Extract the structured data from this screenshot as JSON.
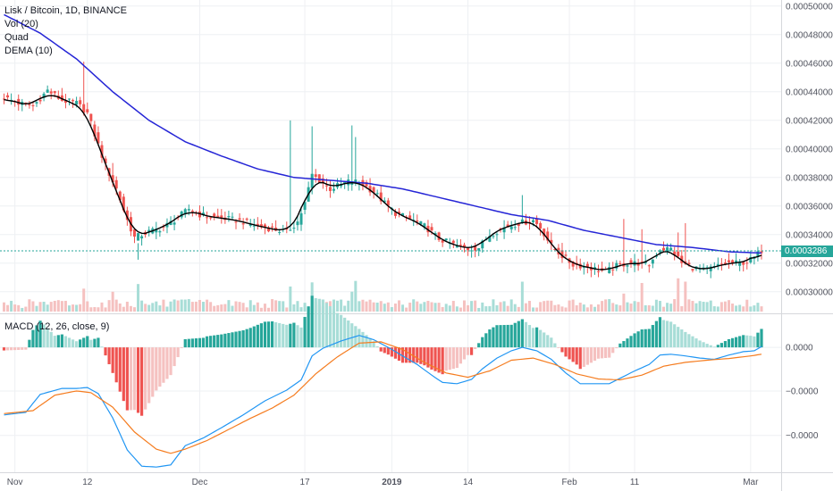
{
  "header": {
    "title": "Lisk / Bitcoin, 1D, BINANCE",
    "indicators": [
      "Vol (20)",
      "Quad",
      "DEMA (10)"
    ]
  },
  "macd_header": {
    "label": "MACD (12, 26, close, 9)"
  },
  "colors": {
    "up": "#26a69a",
    "down": "#ef5350",
    "up_vol": "#a8ddd7",
    "down_vol": "#f5c1c0",
    "quad": "#2525d6",
    "dema": "#000000",
    "macd": "#2196f3",
    "signal": "#f57c1f",
    "price_tag": "#26a69a",
    "grid": "#eef0f3"
  },
  "chart_data": [
    {
      "type": "candlestick",
      "title": "Lisk / Bitcoin, 1D, BINANCE",
      "y_tick_labels": [
        "0.00050000",
        "0.00048000",
        "0.00046000",
        "0.00044000",
        "0.00042000",
        "0.00040000",
        "0.00038000",
        "0.00036000",
        "0.00034000",
        "0.00032000",
        "0.00030000"
      ],
      "ylim": [
        0.000293,
        0.0005005
      ],
      "x_tick_labels": [
        "Nov",
        "12",
        "Dec",
        "17",
        "2019",
        "14",
        "Feb",
        "11",
        "Mar"
      ],
      "x_tick_index": [
        3,
        23,
        54,
        83,
        107,
        128,
        156,
        174,
        206
      ],
      "last_price_label": "0.0003286",
      "last_price": 0.0003286,
      "series_names": [
        "Vol (20)",
        "Quad",
        "DEMA (10)"
      ],
      "dema_smoothing": 3,
      "quad_anchors": [
        [
          0,
          0.000494
        ],
        [
          10,
          0.000481
        ],
        [
          20,
          0.000463
        ],
        [
          30,
          0.00044
        ],
        [
          40,
          0.00042
        ],
        [
          50,
          0.000405
        ],
        [
          60,
          0.000395
        ],
        [
          70,
          0.000386
        ],
        [
          80,
          0.00038
        ],
        [
          90,
          0.000378
        ],
        [
          100,
          0.000376
        ],
        [
          110,
          0.000372
        ],
        [
          120,
          0.000366
        ],
        [
          130,
          0.00036
        ],
        [
          140,
          0.000354
        ],
        [
          150,
          0.00035
        ],
        [
          160,
          0.000343
        ],
        [
          170,
          0.000338
        ],
        [
          180,
          0.000333
        ],
        [
          190,
          0.000331
        ],
        [
          200,
          0.000328
        ],
        [
          210,
          0.000327
        ]
      ],
      "close_anchors": [
        [
          0,
          0.000436
        ],
        [
          4,
          0.000432
        ],
        [
          8,
          0.00043
        ],
        [
          12,
          0.000441
        ],
        [
          16,
          0.000434
        ],
        [
          20,
          0.000432
        ],
        [
          23,
          0.000425
        ],
        [
          25,
          0.00041
        ],
        [
          28,
          0.000388
        ],
        [
          31,
          0.000372
        ],
        [
          34,
          0.00035
        ],
        [
          36,
          0.000338
        ],
        [
          40,
          0.000342
        ],
        [
          44,
          0.000345
        ],
        [
          48,
          0.000352
        ],
        [
          51,
          0.000358
        ],
        [
          54,
          0.000354
        ],
        [
          58,
          0.000352
        ],
        [
          62,
          0.000351
        ],
        [
          66,
          0.000349
        ],
        [
          70,
          0.000346
        ],
        [
          74,
          0.000344
        ],
        [
          78,
          0.000342
        ],
        [
          81,
          0.000349
        ],
        [
          83,
          0.000362
        ],
        [
          85,
          0.000382
        ],
        [
          87,
          0.000378
        ],
        [
          90,
          0.000372
        ],
        [
          93,
          0.000375
        ],
        [
          96,
          0.000378
        ],
        [
          99,
          0.000375
        ],
        [
          102,
          0.00037
        ],
        [
          105,
          0.000362
        ],
        [
          108,
          0.000355
        ],
        [
          112,
          0.000351
        ],
        [
          116,
          0.000346
        ],
        [
          120,
          0.000337
        ],
        [
          124,
          0.000333
        ],
        [
          128,
          0.00033
        ],
        [
          131,
          0.000331
        ],
        [
          134,
          0.00034
        ],
        [
          138,
          0.000345
        ],
        [
          142,
          0.000348
        ],
        [
          146,
          0.00035
        ],
        [
          148,
          0.000345
        ],
        [
          151,
          0.000332
        ],
        [
          154,
          0.000325
        ],
        [
          157,
          0.000319
        ],
        [
          160,
          0.000318
        ],
        [
          163,
          0.000316
        ],
        [
          166,
          0.000314
        ],
        [
          169,
          0.000318
        ],
        [
          172,
          0.00032
        ],
        [
          175,
          0.00032
        ],
        [
          178,
          0.000319
        ],
        [
          181,
          0.00033
        ],
        [
          184,
          0.00033
        ],
        [
          187,
          0.00032
        ],
        [
          190,
          0.000317
        ],
        [
          193,
          0.000315
        ],
        [
          196,
          0.000317
        ],
        [
          199,
          0.00032
        ],
        [
          202,
          0.00032
        ],
        [
          205,
          0.000321
        ],
        [
          207,
          0.000324
        ],
        [
          209,
          0.000329
        ]
      ],
      "spike_candles": [
        [
          22,
          0.000457
        ],
        [
          30,
          0.00039
        ],
        [
          37,
          0.00032
        ],
        [
          79,
          0.000415
        ],
        [
          85,
          0.000415
        ],
        [
          96,
          0.000413
        ],
        [
          97,
          0.000407
        ],
        [
          143,
          0.000366
        ],
        [
          171,
          0.000346
        ],
        [
          176,
          0.00034
        ],
        [
          186,
          0.000339
        ],
        [
          188,
          0.000343
        ]
      ]
    },
    {
      "type": "macd",
      "title": "MACD (12, 26, close, 9)",
      "y_tick_labels": [
        "0.0000",
        "−0.0000",
        "−0.0000"
      ],
      "y_tick_values": [
        0,
        -1.02e-05,
        -2.06e-05
      ],
      "ylim": [
        -2.88e-05,
        6.5e-06
      ],
      "macd_anchors": [
        [
          0,
          -1.58e-05
        ],
        [
          6,
          -1.52e-05
        ],
        [
          10,
          -1.1e-05
        ],
        [
          16,
          -9.6e-06
        ],
        [
          20,
          -9.6e-06
        ],
        [
          23,
          -9.4e-06
        ],
        [
          26,
          -1.08e-05
        ],
        [
          30,
          -1.65e-05
        ],
        [
          34,
          -2.4e-05
        ],
        [
          38,
          -2.78e-05
        ],
        [
          42,
          -2.8e-05
        ],
        [
          46,
          -2.75e-05
        ],
        [
          50,
          -2.3e-05
        ],
        [
          55,
          -2.12e-05
        ],
        [
          60,
          -1.88e-05
        ],
        [
          66,
          -1.58e-05
        ],
        [
          72,
          -1.25e-05
        ],
        [
          78,
          -1e-05
        ],
        [
          82,
          -7.6e-06
        ],
        [
          85,
          -2e-06
        ],
        [
          88,
          -2e-07
        ],
        [
          93,
          1.5e-06
        ],
        [
          98,
          2.8e-06
        ],
        [
          102,
          1.8e-06
        ],
        [
          106,
          0.0
        ],
        [
          110,
          -2e-06
        ],
        [
          114,
          -4e-06
        ],
        [
          118,
          -6.5e-06
        ],
        [
          121,
          -8.2e-06
        ],
        [
          125,
          -8.5e-06
        ],
        [
          129,
          -7.5e-06
        ],
        [
          132,
          -5e-06
        ],
        [
          136,
          -2.5e-06
        ],
        [
          140,
          -8e-07
        ],
        [
          143,
          0.0
        ],
        [
          147,
          -8e-07
        ],
        [
          151,
          -2.8e-06
        ],
        [
          155,
          -6e-06
        ],
        [
          159,
          -8.5e-06
        ],
        [
          163,
          -8.5e-06
        ],
        [
          167,
          -8.5e-06
        ],
        [
          171,
          -6.8e-06
        ],
        [
          174,
          -5.5e-06
        ],
        [
          178,
          -4e-06
        ],
        [
          181,
          -1.8e-06
        ],
        [
          184,
          -1.6e-06
        ],
        [
          188,
          -2e-06
        ],
        [
          192,
          -2.5e-06
        ],
        [
          196,
          -2.8e-06
        ],
        [
          200,
          -1.8e-06
        ],
        [
          204,
          -1e-06
        ],
        [
          207,
          -8e-07
        ],
        [
          209,
          2e-07
        ]
      ],
      "signal_anchors": [
        [
          0,
          -1.55e-05
        ],
        [
          8,
          -1.48e-05
        ],
        [
          14,
          -1.12e-05
        ],
        [
          20,
          -1.02e-05
        ],
        [
          24,
          -1.06e-05
        ],
        [
          30,
          -1.4e-05
        ],
        [
          36,
          -1.98e-05
        ],
        [
          42,
          -2.38e-05
        ],
        [
          46,
          -2.48e-05
        ],
        [
          50,
          -2.38e-05
        ],
        [
          56,
          -2.18e-05
        ],
        [
          62,
          -1.92e-05
        ],
        [
          68,
          -1.66e-05
        ],
        [
          74,
          -1.42e-05
        ],
        [
          80,
          -1.12e-05
        ],
        [
          86,
          -6.2e-06
        ],
        [
          92,
          -2.2e-06
        ],
        [
          98,
          1e-06
        ],
        [
          104,
          1.3e-06
        ],
        [
          110,
          -5e-07
        ],
        [
          116,
          -3.5e-06
        ],
        [
          122,
          -6e-06
        ],
        [
          128,
          -7e-06
        ],
        [
          134,
          -5.5e-06
        ],
        [
          140,
          -3e-06
        ],
        [
          146,
          -2.5e-06
        ],
        [
          152,
          -4e-06
        ],
        [
          158,
          -6.2e-06
        ],
        [
          164,
          -7.4e-06
        ],
        [
          170,
          -7.6e-06
        ],
        [
          176,
          -6.5e-06
        ],
        [
          182,
          -4.4e-06
        ],
        [
          188,
          -3.5e-06
        ],
        [
          194,
          -3e-06
        ],
        [
          200,
          -2.6e-06
        ],
        [
          206,
          -2e-06
        ],
        [
          209,
          -1.6e-06
        ]
      ]
    }
  ]
}
